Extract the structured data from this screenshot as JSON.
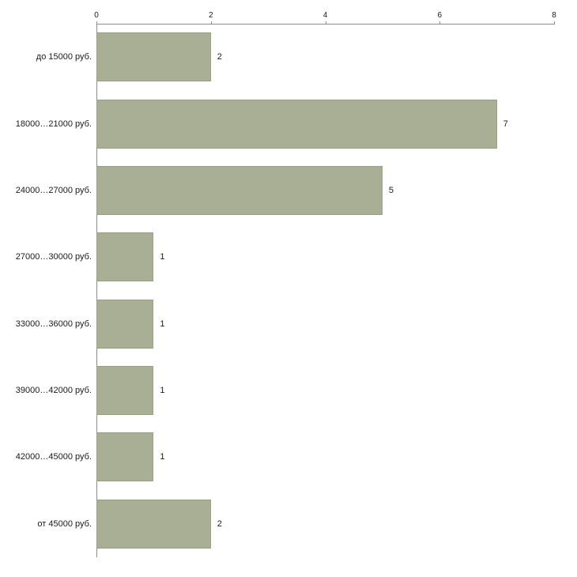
{
  "chart_data": {
    "type": "bar",
    "orientation": "horizontal",
    "title": "",
    "xlabel": "",
    "ylabel": "",
    "categories": [
      "до 15000 руб.",
      "18000…21000 руб.",
      "24000…27000 руб.",
      "27000…30000 руб.",
      "33000…36000 руб.",
      "39000…42000 руб.",
      "42000…45000 руб.",
      "от 45000 руб."
    ],
    "values": [
      2,
      7,
      5,
      1,
      1,
      1,
      1,
      2
    ],
    "xlim": [
      0,
      8
    ],
    "x_ticks": [
      0,
      2,
      4,
      6,
      8
    ],
    "grid": false,
    "legend": "none",
    "bar_color": "#a9af94",
    "bar_border_color": "#9aa083",
    "axis_color": "#8c8c8c",
    "text_color": "#1a1a1a"
  }
}
